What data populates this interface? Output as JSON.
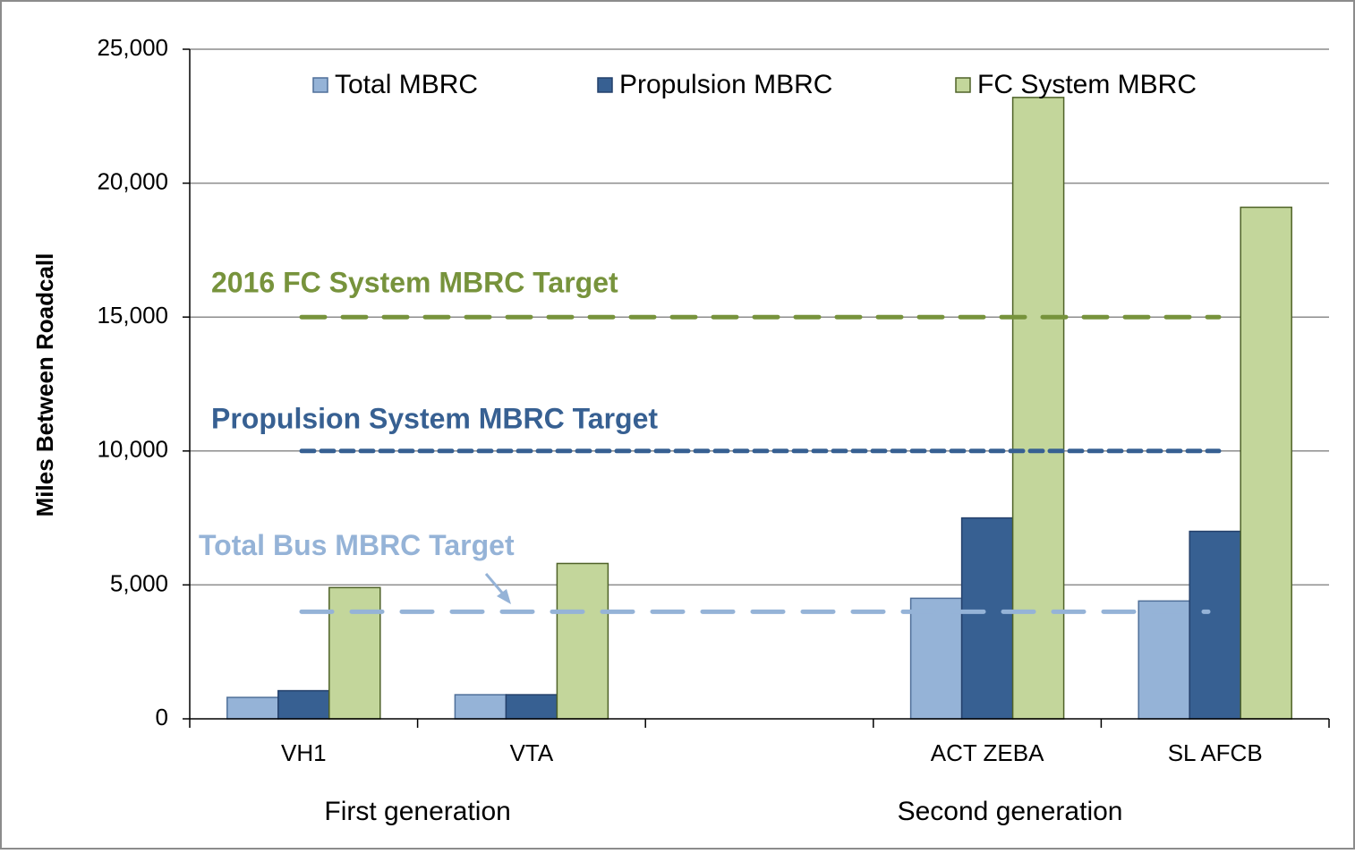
{
  "chart_data": {
    "type": "bar",
    "y_label": "Miles Between Roadcall",
    "categories": [
      "VH1",
      "VTA",
      null,
      "ACT ZEBA",
      "SL AFCB"
    ],
    "group_labels": [
      "First generation",
      "Second generation"
    ],
    "series": [
      {
        "name": "Total MBRC",
        "color": "#95b3d7",
        "values": [
          800,
          900,
          null,
          4500,
          4400
        ]
      },
      {
        "name": "Propulsion MBRC",
        "color": "#376092",
        "values": [
          1050,
          900,
          null,
          7500,
          7000
        ]
      },
      {
        "name": "FC System MBRC",
        "color": "#c3d69b",
        "values": [
          4900,
          5800,
          null,
          23200,
          19100
        ]
      }
    ],
    "reference_lines": [
      {
        "label": "2016 FC System MBRC Target",
        "value": 15000,
        "color": "#77933c"
      },
      {
        "label": "Propulsion System MBRC Target",
        "value": 10000,
        "color": "#376092"
      },
      {
        "label": "Total Bus MBRC Target",
        "value": 4000,
        "color": "#95b3d7"
      }
    ],
    "ylim": [
      0,
      25000
    ],
    "yticks": [
      0,
      {
        "value": 5000,
        "label": "5,000"
      },
      {
        "value": 10000,
        "label": "10,000"
      },
      {
        "value": 15000,
        "label": "15,000"
      },
      {
        "value": 20000,
        "label": "20,000"
      },
      {
        "value": 25000,
        "label": "25,000"
      }
    ],
    "grid": true,
    "legend": "top"
  }
}
